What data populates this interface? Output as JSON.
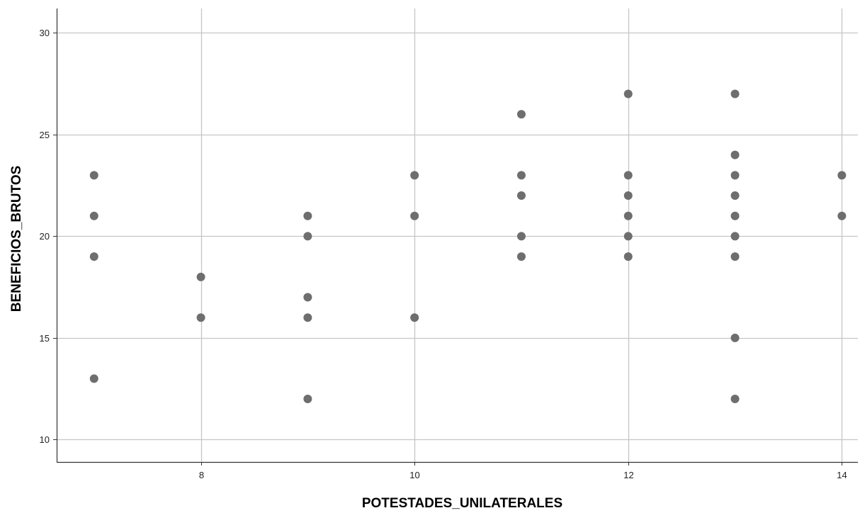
{
  "chart_data": {
    "type": "scatter",
    "xlabel": "POTESTADES_UNILATERALES",
    "ylabel": "BENEFICIOS_BRUTOS",
    "xlim": [
      6.65,
      14.15
    ],
    "ylim": [
      8.9,
      31.2
    ],
    "x_ticks": [
      8,
      10,
      12,
      14
    ],
    "y_ticks": [
      10,
      15,
      20,
      25,
      30
    ],
    "grid": true,
    "legend": "none",
    "points": [
      {
        "x": 7,
        "y": 23
      },
      {
        "x": 7,
        "y": 21
      },
      {
        "x": 7,
        "y": 19
      },
      {
        "x": 7,
        "y": 13
      },
      {
        "x": 8,
        "y": 18
      },
      {
        "x": 8,
        "y": 16
      },
      {
        "x": 9,
        "y": 21
      },
      {
        "x": 9,
        "y": 20
      },
      {
        "x": 9,
        "y": 17
      },
      {
        "x": 9,
        "y": 16
      },
      {
        "x": 9,
        "y": 12
      },
      {
        "x": 10,
        "y": 23
      },
      {
        "x": 10,
        "y": 21
      },
      {
        "x": 10,
        "y": 16
      },
      {
        "x": 11,
        "y": 26
      },
      {
        "x": 11,
        "y": 23
      },
      {
        "x": 11,
        "y": 22
      },
      {
        "x": 11,
        "y": 20
      },
      {
        "x": 11,
        "y": 19
      },
      {
        "x": 12,
        "y": 27
      },
      {
        "x": 12,
        "y": 23
      },
      {
        "x": 12,
        "y": 22
      },
      {
        "x": 12,
        "y": 21
      },
      {
        "x": 12,
        "y": 20
      },
      {
        "x": 12,
        "y": 19
      },
      {
        "x": 13,
        "y": 27
      },
      {
        "x": 13,
        "y": 24
      },
      {
        "x": 13,
        "y": 23
      },
      {
        "x": 13,
        "y": 22
      },
      {
        "x": 13,
        "y": 21
      },
      {
        "x": 13,
        "y": 20
      },
      {
        "x": 13,
        "y": 19
      },
      {
        "x": 13,
        "y": 15
      },
      {
        "x": 13,
        "y": 12
      },
      {
        "x": 14,
        "y": 23
      },
      {
        "x": 14,
        "y": 21
      }
    ],
    "colors": {
      "point": "#6e6e6e",
      "grid": "#c6c6c6",
      "axis": "#333333"
    }
  }
}
